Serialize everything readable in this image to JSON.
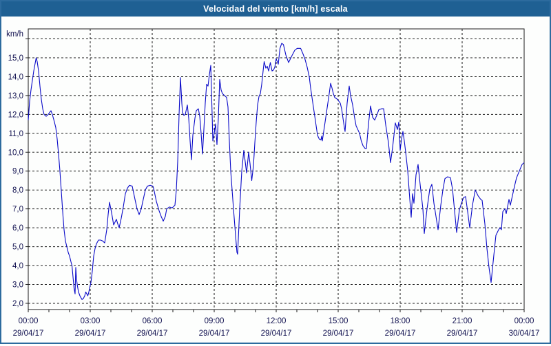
{
  "window": {
    "title": "Velocidad del viento [km/h] escala"
  },
  "colors": {
    "titlebar_bg": "#1f6093",
    "titlebar_text": "#ffffff",
    "frame": "#2d6b9e",
    "plot_bg": "#fdfefd",
    "grid": "#1a1a1a",
    "axis_text": "#10104f",
    "line": "#0a0ac8"
  },
  "chart_data": {
    "type": "line",
    "title": "Velocidad del viento [km/h] escala",
    "unit_label": "km/h",
    "legend": "none",
    "grid": "dashed",
    "y_axis": {
      "min_gridline": 2,
      "max_gridline": 16,
      "step": 1,
      "labels": [
        {
          "v": 2,
          "label": "2,0"
        },
        {
          "v": 3,
          "label": "3,0"
        },
        {
          "v": 4,
          "label": "4,0"
        },
        {
          "v": 5,
          "label": "5,0"
        },
        {
          "v": 6,
          "label": "6,0"
        },
        {
          "v": 7,
          "label": "7,0"
        },
        {
          "v": 8,
          "label": "8,0"
        },
        {
          "v": 9,
          "label": "9,0"
        },
        {
          "v": 10,
          "label": "10,0"
        },
        {
          "v": 11,
          "label": "11,0"
        },
        {
          "v": 12,
          "label": "12,0"
        },
        {
          "v": 13,
          "label": "13,0"
        },
        {
          "v": 14,
          "label": "14,0"
        },
        {
          "v": 15,
          "label": "15,0"
        }
      ]
    },
    "x_axis": {
      "range_hours": 24,
      "minor_tick_hours": 1,
      "major_tick_hours": 3,
      "ticks": [
        {
          "h": 0,
          "time": "00:00",
          "date": "29/04/17"
        },
        {
          "h": 3,
          "time": "03:00",
          "date": "29/04/17"
        },
        {
          "h": 6,
          "time": "06:00",
          "date": "29/04/17"
        },
        {
          "h": 9,
          "time": "09:00",
          "date": "29/04/17"
        },
        {
          "h": 12,
          "time": "12:00",
          "date": "29/04/17"
        },
        {
          "h": 15,
          "time": "15:00",
          "date": "29/04/17"
        },
        {
          "h": 18,
          "time": "18:00",
          "date": "29/04/17"
        },
        {
          "h": 21,
          "time": "21:00",
          "date": "29/04/17"
        },
        {
          "h": 24,
          "time": "00:00",
          "date": "30/04/17"
        }
      ]
    },
    "points_format": [
      "minutes_since_00:00",
      "km/h"
    ],
    "points": [
      [
        0,
        11.7
      ],
      [
        4,
        12.7
      ],
      [
        8,
        13.3
      ],
      [
        12,
        13.8
      ],
      [
        16,
        14.3
      ],
      [
        20,
        14.7
      ],
      [
        23,
        15.0
      ],
      [
        26,
        14.8
      ],
      [
        30,
        14.3
      ],
      [
        34,
        13.5
      ],
      [
        38,
        12.8
      ],
      [
        42,
        12.3
      ],
      [
        46,
        12.0
      ],
      [
        52,
        11.9
      ],
      [
        58,
        12.0
      ],
      [
        62,
        12.1
      ],
      [
        66,
        12.2
      ],
      [
        70,
        12.0
      ],
      [
        76,
        11.6
      ],
      [
        80,
        11.3
      ],
      [
        84,
        10.7
      ],
      [
        88,
        9.9
      ],
      [
        92,
        9.0
      ],
      [
        95,
        8.2
      ],
      [
        98,
        7.4
      ],
      [
        101,
        6.6
      ],
      [
        104,
        5.9
      ],
      [
        108,
        5.3
      ],
      [
        112,
        5.0
      ],
      [
        116,
        4.7
      ],
      [
        120,
        4.5
      ],
      [
        124,
        4.2
      ],
      [
        127,
        4.0
      ],
      [
        130,
        3.4
      ],
      [
        133,
        2.8
      ],
      [
        136,
        2.5
      ],
      [
        138,
        3.9
      ],
      [
        140,
        3.3
      ],
      [
        143,
        2.9
      ],
      [
        146,
        2.6
      ],
      [
        150,
        2.4
      ],
      [
        153,
        2.3
      ],
      [
        156,
        2.2
      ],
      [
        160,
        2.25
      ],
      [
        164,
        2.4
      ],
      [
        167,
        2.6
      ],
      [
        170,
        2.5
      ],
      [
        173,
        2.4
      ],
      [
        176,
        2.6
      ],
      [
        178,
        2.8
      ],
      [
        182,
        3.1
      ],
      [
        186,
        3.7
      ],
      [
        190,
        4.5
      ],
      [
        194,
        4.9
      ],
      [
        198,
        5.15
      ],
      [
        204,
        5.35
      ],
      [
        210,
        5.35
      ],
      [
        216,
        5.3
      ],
      [
        222,
        5.2
      ],
      [
        228,
        5.9
      ],
      [
        232,
        6.7
      ],
      [
        236,
        7.35
      ],
      [
        242,
        6.8
      ],
      [
        248,
        6.15
      ],
      [
        252,
        6.3
      ],
      [
        256,
        6.45
      ],
      [
        260,
        6.2
      ],
      [
        264,
        6.0
      ],
      [
        270,
        6.5
      ],
      [
        276,
        7.1
      ],
      [
        282,
        7.8
      ],
      [
        288,
        8.1
      ],
      [
        294,
        8.25
      ],
      [
        302,
        8.2
      ],
      [
        310,
        7.5
      ],
      [
        316,
        7.0
      ],
      [
        322,
        6.7
      ],
      [
        328,
        7.0
      ],
      [
        334,
        7.5
      ],
      [
        340,
        8.0
      ],
      [
        346,
        8.2
      ],
      [
        354,
        8.25
      ],
      [
        362,
        8.2
      ],
      [
        364,
        8.1
      ],
      [
        372,
        7.4
      ],
      [
        380,
        6.9
      ],
      [
        386,
        6.6
      ],
      [
        392,
        6.35
      ],
      [
        398,
        6.6
      ],
      [
        402,
        7.0
      ],
      [
        410,
        7.1
      ],
      [
        418,
        7.05
      ],
      [
        426,
        7.2
      ],
      [
        430,
        8.0
      ],
      [
        434,
        9.5
      ],
      [
        438,
        12.0
      ],
      [
        442,
        13.95
      ],
      [
        446,
        12.6
      ],
      [
        448,
        12.1
      ],
      [
        452,
        11.95
      ],
      [
        456,
        12.0
      ],
      [
        462,
        12.5
      ],
      [
        466,
        11.8
      ],
      [
        470,
        10.6
      ],
      [
        474,
        9.6
      ],
      [
        478,
        10.9
      ],
      [
        484,
        11.8
      ],
      [
        488,
        12.2
      ],
      [
        494,
        12.3
      ],
      [
        498,
        11.9
      ],
      [
        502,
        11.0
      ],
      [
        506,
        9.9
      ],
      [
        510,
        11.2
      ],
      [
        514,
        12.6
      ],
      [
        518,
        13.6
      ],
      [
        522,
        13.5
      ],
      [
        526,
        14.1
      ],
      [
        530,
        14.6
      ],
      [
        534,
        12.0
      ],
      [
        536,
        10.6
      ],
      [
        540,
        11.0
      ],
      [
        544,
        11.5
      ],
      [
        548,
        10.4
      ],
      [
        552,
        11.8
      ],
      [
        556,
        13.85
      ],
      [
        560,
        13.3
      ],
      [
        564,
        13.1
      ],
      [
        570,
        13.0
      ],
      [
        576,
        12.9
      ],
      [
        580,
        12.4
      ],
      [
        584,
        10.6
      ],
      [
        588,
        9.0
      ],
      [
        592,
        8.0
      ],
      [
        596,
        7.0
      ],
      [
        602,
        5.6
      ],
      [
        606,
        4.7
      ],
      [
        608,
        4.6
      ],
      [
        614,
        7.0
      ],
      [
        620,
        9.0
      ],
      [
        626,
        10.1
      ],
      [
        630,
        9.5
      ],
      [
        634,
        8.9
      ],
      [
        640,
        10.0
      ],
      [
        644,
        9.4
      ],
      [
        649,
        8.5
      ],
      [
        654,
        9.3
      ],
      [
        658,
        10.5
      ],
      [
        662,
        11.6
      ],
      [
        666,
        12.5
      ],
      [
        670,
        12.95
      ],
      [
        674,
        13.1
      ],
      [
        678,
        13.6
      ],
      [
        682,
        14.3
      ],
      [
        685,
        14.8
      ],
      [
        690,
        14.45
      ],
      [
        694,
        14.55
      ],
      [
        698,
        14.3
      ],
      [
        703,
        14.75
      ],
      [
        708,
        14.3
      ],
      [
        712,
        14.35
      ],
      [
        716,
        14.5
      ],
      [
        720,
        14.95
      ],
      [
        726,
        14.66
      ],
      [
        731,
        15.5
      ],
      [
        736,
        15.77
      ],
      [
        741,
        15.7
      ],
      [
        748,
        15.15
      ],
      [
        756,
        14.75
      ],
      [
        764,
        15.05
      ],
      [
        774,
        15.4
      ],
      [
        781,
        15.5
      ],
      [
        791,
        15.5
      ],
      [
        798,
        15.2
      ],
      [
        804,
        14.9
      ],
      [
        810,
        14.5
      ],
      [
        816,
        14.0
      ],
      [
        820,
        13.4
      ],
      [
        824,
        12.9
      ],
      [
        828,
        12.4
      ],
      [
        832,
        11.9
      ],
      [
        836,
        11.4
      ],
      [
        840,
        10.9
      ],
      [
        845,
        10.7
      ],
      [
        850,
        10.65
      ],
      [
        852,
        10.85
      ],
      [
        854,
        10.6
      ],
      [
        858,
        11.1
      ],
      [
        862,
        11.6
      ],
      [
        866,
        12.1
      ],
      [
        870,
        12.6
      ],
      [
        874,
        13.1
      ],
      [
        878,
        13.65
      ],
      [
        882,
        13.4
      ],
      [
        886,
        13.1
      ],
      [
        890,
        12.9
      ],
      [
        894,
        12.85
      ],
      [
        898,
        12.8
      ],
      [
        902,
        12.7
      ],
      [
        906,
        12.6
      ],
      [
        910,
        12.3
      ],
      [
        914,
        11.8
      ],
      [
        918,
        11.3
      ],
      [
        920,
        11.1
      ],
      [
        926,
        12.6
      ],
      [
        932,
        13.5
      ],
      [
        936,
        13.0
      ],
      [
        942,
        12.5
      ],
      [
        947,
        11.9
      ],
      [
        952,
        11.4
      ],
      [
        957,
        11.2
      ],
      [
        962,
        11.0
      ],
      [
        967,
        10.6
      ],
      [
        972,
        10.35
      ],
      [
        978,
        10.2
      ],
      [
        982,
        10.2
      ],
      [
        988,
        11.5
      ],
      [
        994,
        12.45
      ],
      [
        1000,
        11.85
      ],
      [
        1006,
        11.7
      ],
      [
        1012,
        11.95
      ],
      [
        1018,
        12.25
      ],
      [
        1026,
        12.3
      ],
      [
        1032,
        12.3
      ],
      [
        1038,
        11.45
      ],
      [
        1046,
        10.5
      ],
      [
        1052,
        9.45
      ],
      [
        1058,
        10.25
      ],
      [
        1062,
        10.9
      ],
      [
        1066,
        11.55
      ],
      [
        1072,
        11.2
      ],
      [
        1076,
        11.6
      ],
      [
        1080,
        10.1
      ],
      [
        1084,
        10.7
      ],
      [
        1088,
        11.1
      ],
      [
        1092,
        10.6
      ],
      [
        1096,
        10.0
      ],
      [
        1102,
        9.0
      ],
      [
        1108,
        7.5
      ],
      [
        1112,
        6.55
      ],
      [
        1116,
        7.8
      ],
      [
        1120,
        7.3
      ],
      [
        1126,
        8.8
      ],
      [
        1132,
        9.35
      ],
      [
        1138,
        8.3
      ],
      [
        1146,
        7.0
      ],
      [
        1150,
        5.7
      ],
      [
        1158,
        7.0
      ],
      [
        1166,
        8.05
      ],
      [
        1172,
        8.3
      ],
      [
        1178,
        7.3
      ],
      [
        1184,
        6.6
      ],
      [
        1190,
        5.9
      ],
      [
        1198,
        7.2
      ],
      [
        1204,
        8.0
      ],
      [
        1210,
        8.6
      ],
      [
        1218,
        8.7
      ],
      [
        1226,
        8.65
      ],
      [
        1232,
        8.05
      ],
      [
        1238,
        6.9
      ],
      [
        1244,
        5.75
      ],
      [
        1252,
        6.95
      ],
      [
        1258,
        7.3
      ],
      [
        1264,
        7.6
      ],
      [
        1270,
        7.65
      ],
      [
        1276,
        6.85
      ],
      [
        1282,
        6.0
      ],
      [
        1290,
        7.2
      ],
      [
        1298,
        8.0
      ],
      [
        1306,
        7.7
      ],
      [
        1314,
        7.5
      ],
      [
        1318,
        7.45
      ],
      [
        1326,
        6.2
      ],
      [
        1332,
        4.9
      ],
      [
        1338,
        3.9
      ],
      [
        1344,
        3.1
      ],
      [
        1352,
        4.55
      ],
      [
        1358,
        5.6
      ],
      [
        1366,
        5.9
      ],
      [
        1370,
        6.0
      ],
      [
        1374,
        5.9
      ],
      [
        1378,
        6.85
      ],
      [
        1384,
        7.0
      ],
      [
        1388,
        6.75
      ],
      [
        1396,
        7.5
      ],
      [
        1400,
        7.2
      ],
      [
        1406,
        7.7
      ],
      [
        1412,
        8.2
      ],
      [
        1418,
        8.65
      ],
      [
        1426,
        9.0
      ],
      [
        1434,
        9.35
      ],
      [
        1440,
        9.45
      ]
    ]
  }
}
